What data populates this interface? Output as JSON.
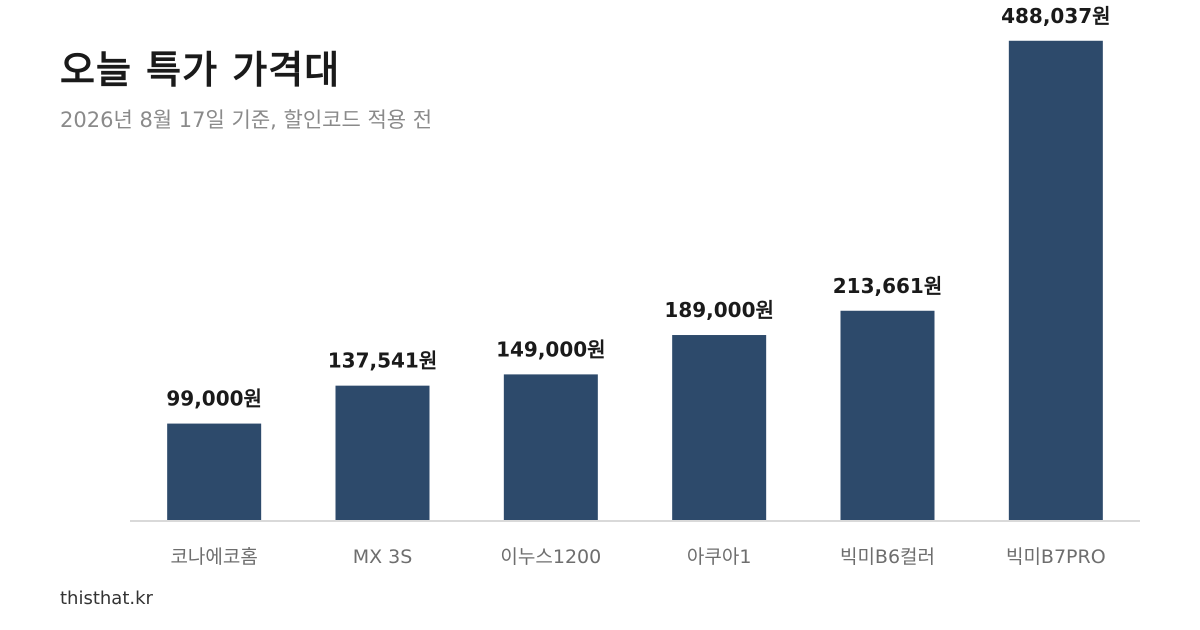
{
  "title": "오늘 특가 가격대",
  "subtitle": "2026년 8월 17일 기준, 할인코드 적용 전",
  "footer": "thisthat.kr",
  "colors": {
    "bar": "#2d4a6b",
    "axis": "#d9d9d9"
  },
  "chart_data": {
    "type": "bar",
    "categories": [
      "코나에코홈",
      "MX 3S",
      "이누스1200",
      "아쿠아1",
      "빅미B6컬러",
      "빅미B7PRO"
    ],
    "values": [
      99000,
      137541,
      149000,
      189000,
      213661,
      488037
    ],
    "value_labels": [
      "99,000원",
      "137,541원",
      "149,000원",
      "189,000원",
      "213,661원",
      "488,037원"
    ],
    "ylim": [
      0,
      500000
    ],
    "grid": false,
    "legend": "none"
  }
}
